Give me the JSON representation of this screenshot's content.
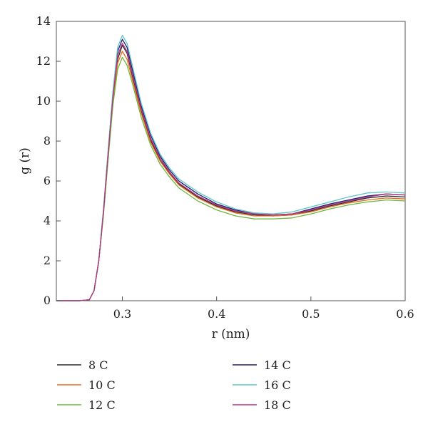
{
  "chart_data": {
    "type": "line",
    "title": "",
    "xlabel": "r (nm)",
    "ylabel": "g (r)",
    "xlim": [
      0.23,
      0.6
    ],
    "ylim": [
      0,
      14
    ],
    "xticks": [
      0.3,
      0.4,
      0.5,
      0.6
    ],
    "xtick_labels": [
      "0.3",
      "0.4",
      "0.5",
      "0.6"
    ],
    "yticks": [
      0,
      2,
      4,
      6,
      8,
      10,
      12,
      14
    ],
    "ytick_labels": [
      "0",
      "2",
      "4",
      "6",
      "8",
      "10",
      "12",
      "14"
    ],
    "grid": false,
    "legend_position": "bottom",
    "x": [
      0.23,
      0.255,
      0.265,
      0.27,
      0.275,
      0.28,
      0.285,
      0.29,
      0.295,
      0.3,
      0.305,
      0.31,
      0.32,
      0.33,
      0.34,
      0.35,
      0.36,
      0.38,
      0.4,
      0.42,
      0.44,
      0.46,
      0.48,
      0.5,
      0.52,
      0.54,
      0.56,
      0.58,
      0.6
    ],
    "series": [
      {
        "name": "8 C",
        "color": "#2b2b2b",
        "values": [
          0,
          0,
          0.05,
          0.5,
          2.0,
          4.4,
          7.3,
          10.1,
          12.1,
          12.8,
          12.4,
          11.4,
          9.5,
          8.05,
          7.05,
          6.4,
          5.85,
          5.2,
          4.75,
          4.45,
          4.3,
          4.25,
          4.3,
          4.5,
          4.75,
          4.95,
          5.15,
          5.25,
          5.2
        ]
      },
      {
        "name": "10 C",
        "color": "#e86a1e",
        "values": [
          0,
          0,
          0.05,
          0.5,
          2.0,
          4.4,
          7.3,
          10.1,
          11.9,
          12.5,
          12.1,
          11.2,
          9.4,
          7.95,
          7.0,
          6.35,
          5.8,
          5.15,
          4.7,
          4.4,
          4.25,
          4.25,
          4.3,
          4.45,
          4.7,
          4.9,
          5.05,
          5.15,
          5.1
        ]
      },
      {
        "name": "12 C",
        "color": "#6fb63b",
        "values": [
          0,
          0,
          0.05,
          0.5,
          2.0,
          4.3,
          7.1,
          9.8,
          11.6,
          12.2,
          11.8,
          11.0,
          9.2,
          7.8,
          6.85,
          6.2,
          5.65,
          5.0,
          4.55,
          4.25,
          4.1,
          4.1,
          4.15,
          4.35,
          4.6,
          4.8,
          4.95,
          5.05,
          5.0
        ]
      },
      {
        "name": "14 C",
        "color": "#1f1a78",
        "values": [
          0,
          0,
          0.05,
          0.5,
          2.0,
          4.5,
          7.5,
          10.4,
          12.5,
          13.1,
          12.7,
          11.7,
          9.75,
          8.3,
          7.25,
          6.55,
          6.0,
          5.35,
          4.85,
          4.55,
          4.35,
          4.3,
          4.35,
          4.6,
          4.85,
          5.05,
          5.25,
          5.35,
          5.3
        ]
      },
      {
        "name": "16 C",
        "color": "#5cc5c7",
        "values": [
          0,
          0,
          0.05,
          0.5,
          2.0,
          4.6,
          7.6,
          10.5,
          12.7,
          13.3,
          12.9,
          11.9,
          9.9,
          8.4,
          7.35,
          6.65,
          6.1,
          5.45,
          4.95,
          4.6,
          4.4,
          4.35,
          4.45,
          4.7,
          4.95,
          5.2,
          5.4,
          5.45,
          5.4
        ]
      },
      {
        "name": "18 C",
        "color": "#b8337e",
        "values": [
          0,
          0,
          0.05,
          0.5,
          2.0,
          4.5,
          7.4,
          10.2,
          12.3,
          12.9,
          12.5,
          11.5,
          9.6,
          8.15,
          7.15,
          6.45,
          5.9,
          5.25,
          4.8,
          4.5,
          4.35,
          4.3,
          4.35,
          4.55,
          4.8,
          5.0,
          5.2,
          5.35,
          5.3
        ]
      }
    ]
  }
}
